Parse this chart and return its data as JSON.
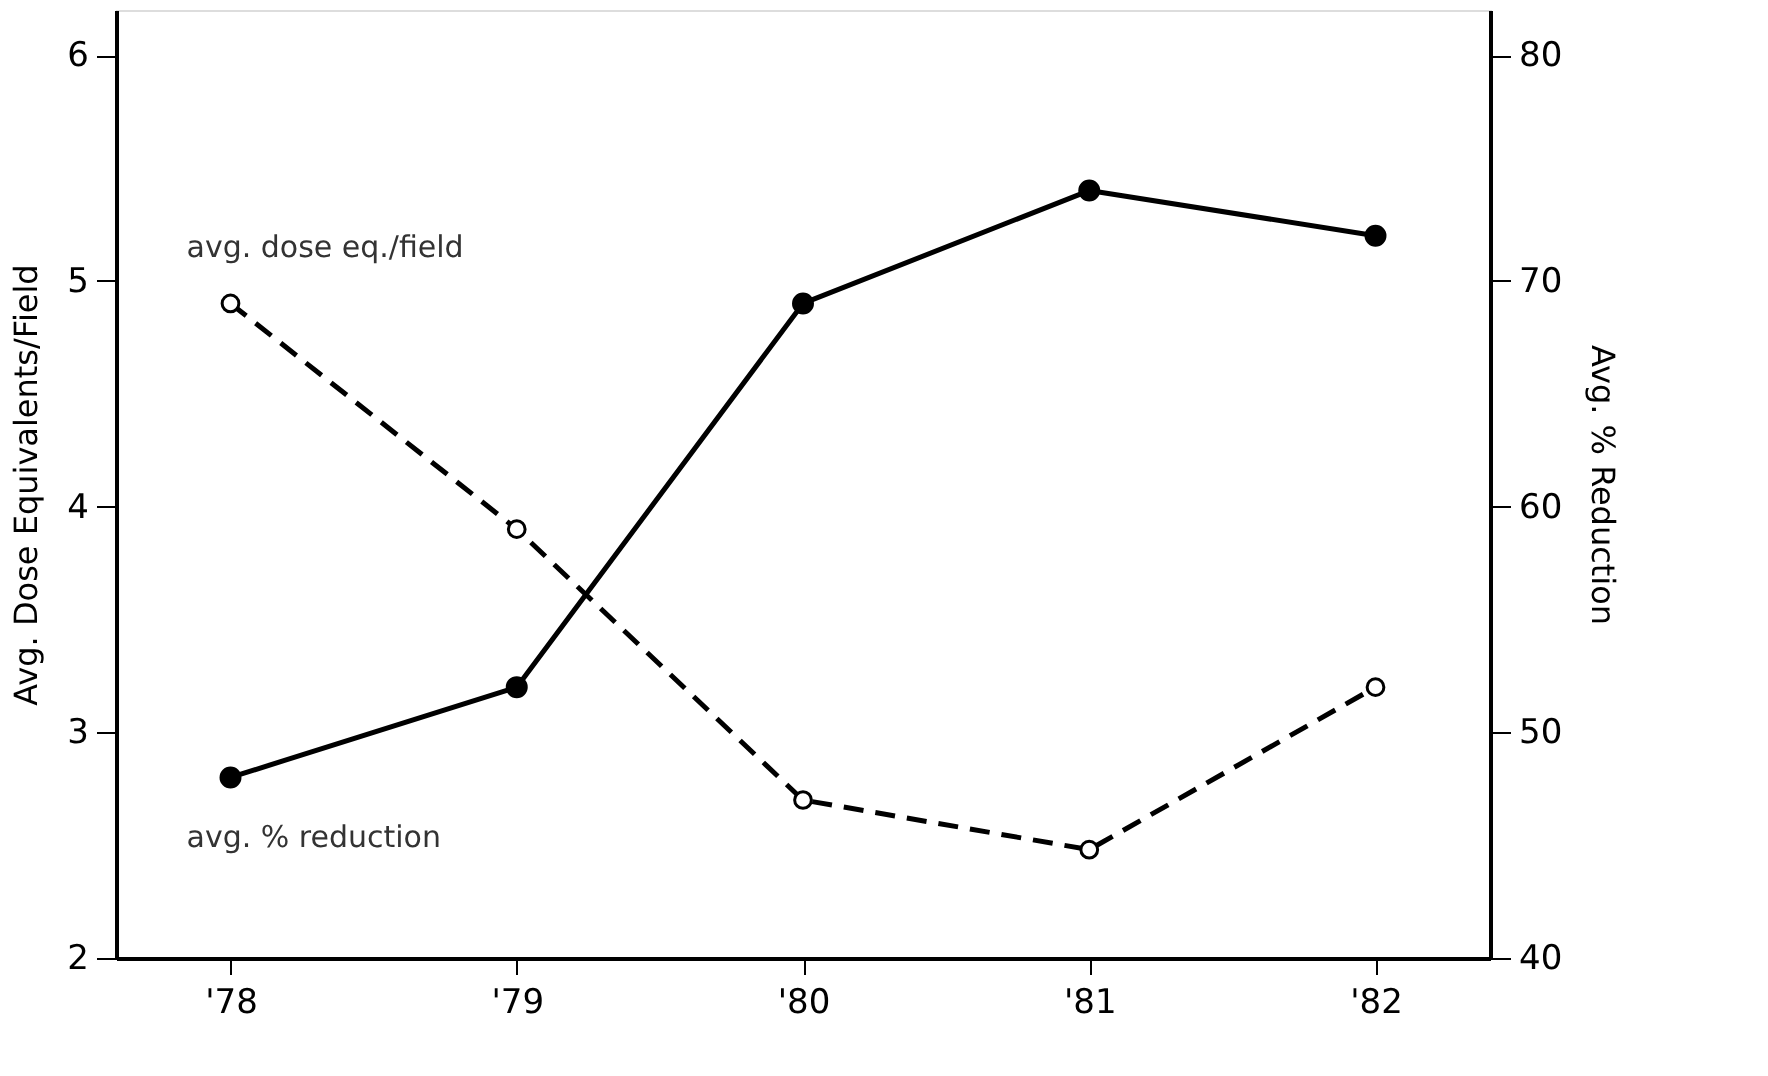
{
  "chart_data": {
    "type": "line",
    "categories": [
      "'78",
      "'79",
      "'80",
      "'81",
      "'82"
    ],
    "series": [
      {
        "name": "avg. dose eq./field",
        "color": "#000000",
        "values": [
          4.9,
          3.9,
          2.7,
          2.48,
          3.2
        ],
        "line_style": "dashed",
        "marker": "circle"
      },
      {
        "name": "avg. % reduction",
        "color": "#000000",
        "values": [
          48,
          52,
          69,
          74,
          72
        ],
        "line_style": "solid",
        "marker": "circle",
        "axis": "y2"
      }
    ],
    "ylabel": "Avg. Dose Equivalents/Field",
    "y2label": "Avg. % Reduction",
    "ylim": [
      2,
      6.2
    ],
    "yticks": [
      2,
      3,
      4,
      5,
      6
    ],
    "y2lim": [
      40,
      82
    ],
    "y2ticks": [
      40,
      50,
      60,
      70,
      80
    ],
    "grid": false,
    "legend": false
  }
}
